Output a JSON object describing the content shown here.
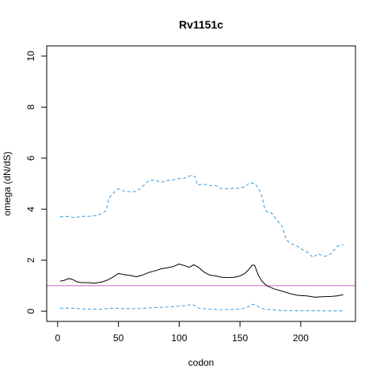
{
  "chart_data": {
    "type": "line",
    "title": "Rv1151c",
    "xlabel": "codon",
    "ylabel": "omega (dN/dS)",
    "xlim": [
      -9,
      245
    ],
    "ylim": [
      -0.4,
      10.4
    ],
    "xticks": [
      0,
      50,
      100,
      150,
      200
    ],
    "yticks": [
      0,
      2,
      4,
      6,
      8,
      10
    ],
    "reference_line": {
      "y": 1,
      "color": "#cc66cc"
    },
    "grid": false,
    "legend": "none",
    "colors": {
      "estimate": "#000000",
      "bounds": "#3399dd"
    },
    "series": [
      {
        "style": "solid",
        "color": "#000000",
        "points": [
          [
            2,
            1.18
          ],
          [
            5,
            1.2
          ],
          [
            9,
            1.28
          ],
          [
            12,
            1.25
          ],
          [
            16,
            1.15
          ],
          [
            20,
            1.12
          ],
          [
            25,
            1.12
          ],
          [
            30,
            1.1
          ],
          [
            36,
            1.14
          ],
          [
            40,
            1.2
          ],
          [
            45,
            1.32
          ],
          [
            50,
            1.48
          ],
          [
            55,
            1.43
          ],
          [
            60,
            1.4
          ],
          [
            65,
            1.35
          ],
          [
            70,
            1.42
          ],
          [
            75,
            1.52
          ],
          [
            80,
            1.58
          ],
          [
            85,
            1.66
          ],
          [
            90,
            1.7
          ],
          [
            95,
            1.75
          ],
          [
            100,
            1.85
          ],
          [
            105,
            1.78
          ],
          [
            108,
            1.72
          ],
          [
            112,
            1.82
          ],
          [
            116,
            1.72
          ],
          [
            120,
            1.55
          ],
          [
            125,
            1.42
          ],
          [
            130,
            1.38
          ],
          [
            135,
            1.33
          ],
          [
            140,
            1.32
          ],
          [
            145,
            1.33
          ],
          [
            150,
            1.38
          ],
          [
            154,
            1.48
          ],
          [
            157,
            1.62
          ],
          [
            160,
            1.81
          ],
          [
            162,
            1.8
          ],
          [
            165,
            1.42
          ],
          [
            168,
            1.18
          ],
          [
            172,
            1.0
          ],
          [
            178,
            0.88
          ],
          [
            185,
            0.78
          ],
          [
            192,
            0.68
          ],
          [
            198,
            0.62
          ],
          [
            205,
            0.6
          ],
          [
            212,
            0.55
          ],
          [
            218,
            0.57
          ],
          [
            225,
            0.58
          ],
          [
            230,
            0.6
          ],
          [
            235,
            0.65
          ]
        ]
      },
      {
        "style": "dashed",
        "color": "#3399dd",
        "points": [
          [
            2,
            3.7
          ],
          [
            8,
            3.72
          ],
          [
            14,
            3.67
          ],
          [
            20,
            3.72
          ],
          [
            26,
            3.72
          ],
          [
            32,
            3.75
          ],
          [
            37,
            3.85
          ],
          [
            40,
            3.95
          ],
          [
            42,
            4.4
          ],
          [
            45,
            4.6
          ],
          [
            50,
            4.8
          ],
          [
            55,
            4.7
          ],
          [
            60,
            4.68
          ],
          [
            65,
            4.7
          ],
          [
            70,
            4.9
          ],
          [
            75,
            5.12
          ],
          [
            80,
            5.15
          ],
          [
            85,
            5.05
          ],
          [
            90,
            5.12
          ],
          [
            95,
            5.15
          ],
          [
            100,
            5.2
          ],
          [
            105,
            5.22
          ],
          [
            110,
            5.33
          ],
          [
            113,
            5.28
          ],
          [
            115,
            4.95
          ],
          [
            120,
            4.98
          ],
          [
            125,
            4.93
          ],
          [
            130,
            4.92
          ],
          [
            135,
            4.8
          ],
          [
            140,
            4.8
          ],
          [
            145,
            4.82
          ],
          [
            150,
            4.82
          ],
          [
            155,
            4.9
          ],
          [
            158,
            5.05
          ],
          [
            162,
            5.0
          ],
          [
            165,
            4.85
          ],
          [
            168,
            4.5
          ],
          [
            170,
            4.1
          ],
          [
            172,
            3.9
          ],
          [
            176,
            3.85
          ],
          [
            180,
            3.6
          ],
          [
            185,
            3.3
          ],
          [
            188,
            2.8
          ],
          [
            192,
            2.65
          ],
          [
            197,
            2.55
          ],
          [
            202,
            2.4
          ],
          [
            206,
            2.3
          ],
          [
            210,
            2.1
          ],
          [
            214,
            2.25
          ],
          [
            220,
            2.15
          ],
          [
            225,
            2.25
          ],
          [
            230,
            2.55
          ],
          [
            235,
            2.6
          ]
        ]
      },
      {
        "style": "dashed",
        "color": "#3399dd",
        "points": [
          [
            2,
            0.12
          ],
          [
            10,
            0.12
          ],
          [
            18,
            0.1
          ],
          [
            26,
            0.08
          ],
          [
            35,
            0.08
          ],
          [
            45,
            0.12
          ],
          [
            55,
            0.1
          ],
          [
            65,
            0.1
          ],
          [
            75,
            0.13
          ],
          [
            85,
            0.15
          ],
          [
            95,
            0.18
          ],
          [
            105,
            0.22
          ],
          [
            110,
            0.26
          ],
          [
            113,
            0.22
          ],
          [
            116,
            0.12
          ],
          [
            125,
            0.08
          ],
          [
            135,
            0.06
          ],
          [
            145,
            0.07
          ],
          [
            152,
            0.1
          ],
          [
            157,
            0.18
          ],
          [
            160,
            0.27
          ],
          [
            163,
            0.25
          ],
          [
            166,
            0.15
          ],
          [
            170,
            0.08
          ],
          [
            180,
            0.04
          ],
          [
            190,
            0.02
          ],
          [
            200,
            0.02
          ],
          [
            210,
            0.02
          ],
          [
            220,
            0.01
          ],
          [
            235,
            0.01
          ]
        ]
      }
    ]
  }
}
